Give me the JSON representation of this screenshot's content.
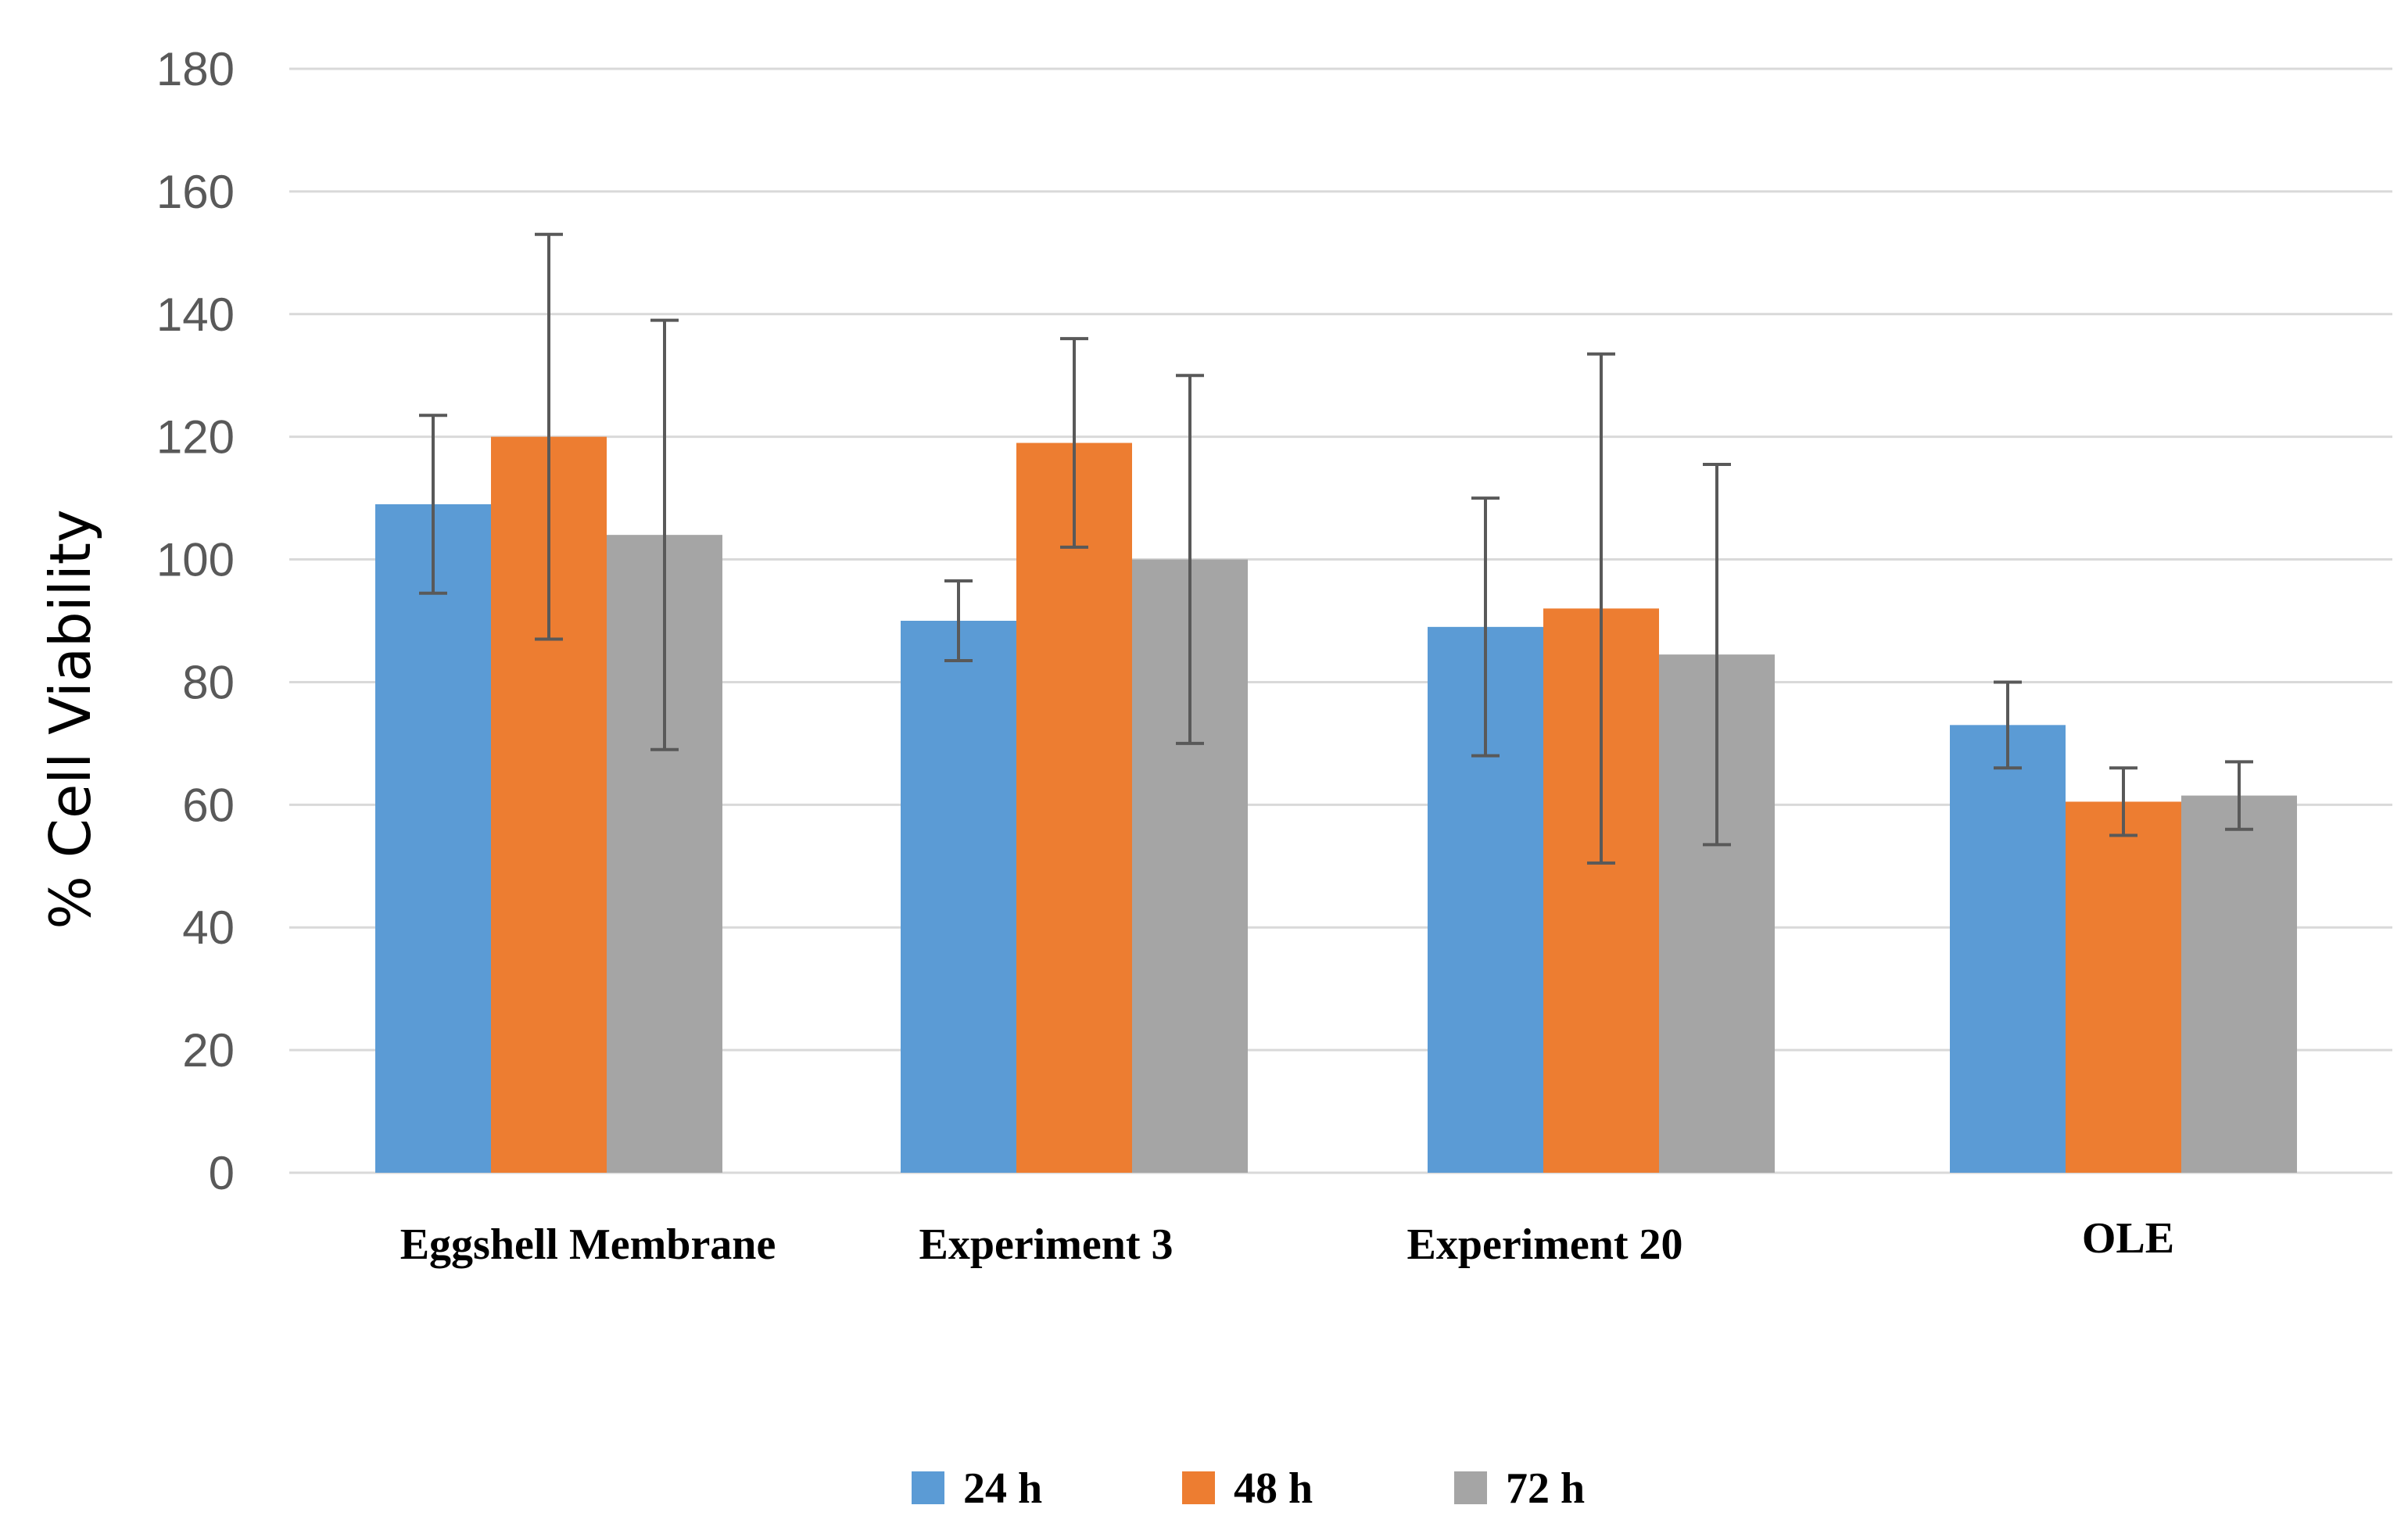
{
  "chart_data": {
    "type": "bar",
    "title": "",
    "xlabel": "",
    "ylabel": "% Cell Viability",
    "ylim": [
      0,
      180
    ],
    "yticks": [
      0,
      20,
      40,
      60,
      80,
      100,
      120,
      140,
      160,
      180
    ],
    "grid": true,
    "legend_position": "bottom",
    "categories": [
      "Eggshell Membrane",
      "Experiment 3",
      "Experiment 20",
      "OLE"
    ],
    "series": [
      {
        "name": "24 h",
        "color": "#5b9bd5",
        "values": [
          109,
          90,
          89,
          73
        ],
        "errors": [
          14.5,
          6.5,
          21,
          7
        ]
      },
      {
        "name": "48 h",
        "color": "#ed7d31",
        "values": [
          120,
          119,
          92,
          60.5
        ],
        "errors": [
          33,
          17,
          41.5,
          5.5
        ]
      },
      {
        "name": "72 h",
        "color": "#a5a5a5",
        "values": [
          104,
          100,
          84.5,
          61.5
        ],
        "errors": [
          35,
          30,
          31,
          5.5
        ]
      }
    ]
  }
}
